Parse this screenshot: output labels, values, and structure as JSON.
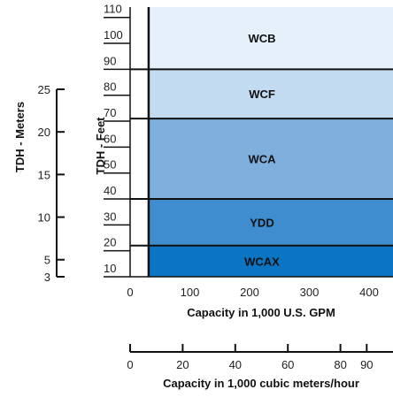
{
  "chart_data": {
    "type": "area",
    "regions": [
      {
        "name": "WCB",
        "y_range_ft": [
          90,
          114
        ],
        "color": "#e6f0fa"
      },
      {
        "name": "WCF",
        "y_range_ft": [
          71,
          90
        ],
        "color": "#c2dbf1"
      },
      {
        "name": "WCA",
        "y_range_ft": [
          40,
          71
        ],
        "color": "#7fb0dd"
      },
      {
        "name": "YDD",
        "y_range_ft": [
          22,
          40
        ],
        "color": "#3f8ccf"
      },
      {
        "name": "WCAX",
        "y_range_ft": [
          10,
          22
        ],
        "color": "#0b74c3"
      }
    ],
    "x_start": 31,
    "x_primary": {
      "label": "Capacity in 1,000 U.S. GPM",
      "range": [
        0,
        440
      ],
      "ticks": [
        0,
        100,
        200,
        300,
        400
      ],
      "tick_labels": [
        "0",
        "100",
        "200",
        "300",
        "400"
      ]
    },
    "x_secondary": {
      "label": "Capacity in 1,000 cubic meters/hour",
      "range": [
        0,
        100
      ],
      "ticks": [
        0,
        20,
        40,
        60,
        80,
        90
      ],
      "tick_labels": [
        "0",
        "20",
        "40",
        "60",
        "80",
        "90"
      ]
    },
    "y_feet": {
      "label": "TDH - Feet",
      "range": [
        10,
        114
      ],
      "ticks": [
        10,
        20,
        30,
        40,
        50,
        60,
        70,
        80,
        90,
        100,
        110
      ],
      "tick_labels": [
        "10",
        "20",
        "30",
        "40",
        "50",
        "60",
        "70",
        "80",
        "90",
        "100",
        "110"
      ]
    },
    "y_meters": {
      "label": "TDH - Meters",
      "ticks": [
        3,
        5,
        10,
        15,
        20,
        25
      ],
      "tick_labels": [
        "3",
        "5",
        "10",
        "15",
        "20",
        "25"
      ]
    },
    "grid": false
  }
}
